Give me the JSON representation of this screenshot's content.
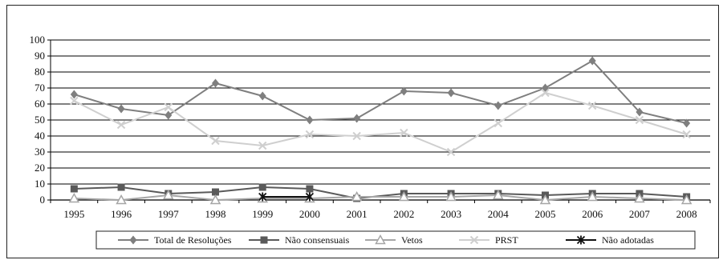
{
  "chart_data": {
    "type": "line",
    "title": "",
    "xlabel": "",
    "ylabel": "",
    "ylim": [
      0,
      100
    ],
    "yticks": [
      0,
      10,
      20,
      30,
      40,
      50,
      60,
      70,
      80,
      90,
      100
    ],
    "grid": "horizontal",
    "legend_position": "bottom",
    "categories": [
      "1995",
      "1996",
      "1997",
      "1998",
      "1999",
      "2000",
      "2001",
      "2002",
      "2003",
      "2004",
      "2005",
      "2006",
      "2007",
      "2008"
    ],
    "series": [
      {
        "name": "Total de Resoluções",
        "marker": "diamond",
        "color": "#7f7f7f",
        "values": [
          66,
          57,
          53,
          73,
          65,
          50,
          51,
          68,
          67,
          59,
          70,
          87,
          55,
          48
        ]
      },
      {
        "name": "Não consensuais",
        "marker": "square",
        "color": "#5a5a5a",
        "values": [
          7,
          8,
          4,
          5,
          8,
          7,
          1,
          4,
          4,
          4,
          3,
          4,
          4,
          2
        ]
      },
      {
        "name": "Vetos",
        "marker": "triangle",
        "color": "#a6a6a6",
        "values": [
          1,
          0,
          3,
          0,
          1,
          1,
          2,
          2,
          2,
          3,
          0,
          2,
          1,
          0
        ]
      },
      {
        "name": "PRST",
        "marker": "x",
        "color": "#cfcfcf",
        "values": [
          62,
          47,
          58,
          37,
          34,
          41,
          40,
          42,
          30,
          48,
          67,
          59,
          50,
          41
        ]
      },
      {
        "name": "Não adotadas",
        "marker": "asterisk",
        "color": "#111111",
        "values": [
          null,
          null,
          null,
          null,
          2,
          2,
          null,
          null,
          null,
          null,
          null,
          null,
          null,
          null
        ]
      }
    ]
  }
}
